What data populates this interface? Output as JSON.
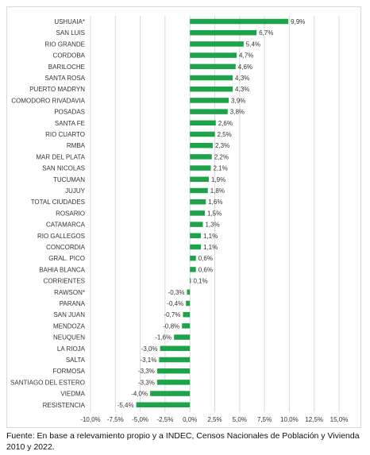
{
  "chart_data": {
    "type": "bar",
    "orientation": "horizontal",
    "bar_color": "#1fa34a",
    "grid_color": "#d9d9d9",
    "grid": true,
    "categories": [
      "USHUAIA*",
      "SAN LUIS",
      "RIO GRANDE",
      "CORDOBA",
      "BARILOCHE",
      "SANTA ROSA",
      "PUERTO MADRYN",
      "COMODORO RIVADAVIA",
      "POSADAS",
      "SANTA FE",
      "RIO CUARTO",
      "RMBA",
      "MAR DEL PLATA",
      "SAN NICOLAS",
      "TUCUMAN",
      "JUJUY",
      "TOTAL CIUDADES",
      "ROSARIO",
      "CATAMARCA",
      "RIO GALLEGOS",
      "CONCORDIA",
      "GRAL. PICO",
      "BAHIA BLANCA",
      "CORRIENTES",
      "RAWSON*",
      "PARANA",
      "SAN JUAN",
      "MENDOZA",
      "NEUQUEN",
      "LA RIOJA",
      "SALTA",
      "FORMOSA",
      "SANTIAGO DEL ESTERO",
      "VIEDMA",
      "RESISTENCIA"
    ],
    "values": [
      9.9,
      6.7,
      5.4,
      4.7,
      4.6,
      4.3,
      4.3,
      3.9,
      3.8,
      2.6,
      2.5,
      2.3,
      2.2,
      2.1,
      1.9,
      1.8,
      1.6,
      1.5,
      1.3,
      1.1,
      1.1,
      0.6,
      0.6,
      0.1,
      -0.3,
      -0.4,
      -0.7,
      -0.8,
      -1.6,
      -3.0,
      -3.1,
      -3.3,
      -3.3,
      -4.0,
      -5.4
    ],
    "value_labels": [
      "9,9%",
      "6,7%",
      "5,4%",
      "4,7%",
      "4,6%",
      "4,3%",
      "4,3%",
      "3,9%",
      "3,8%",
      "2,6%",
      "2,5%",
      "2,3%",
      "2,2%",
      "2,1%",
      "1,9%",
      "1,8%",
      "1,6%",
      "1,5%",
      "1,3%",
      "1,1%",
      "1,1%",
      "0,6%",
      "0,6%",
      "0,1%",
      "-0,3%",
      "-0,4%",
      "-0,7%",
      "-0,8%",
      "-1,6%",
      "-3,0%",
      "-3,1%",
      "-3,3%",
      "-3,3%",
      "-4,0%",
      "-5,4%"
    ],
    "x_ticks": [
      -10,
      -7.5,
      -5,
      -2.5,
      0,
      2.5,
      5,
      7.5,
      10,
      12.5,
      15
    ],
    "x_tick_labels": [
      "-10,0%",
      "-7,5%",
      "-5,0%",
      "-2,5%",
      "0,0%",
      "2,5%",
      "5,0%",
      "7,5%",
      "10,0%",
      "12,5%",
      "15,0%"
    ],
    "xlim": [
      -10,
      15
    ]
  },
  "source_note": "Fuente: En base a relevamiento propio y a INDEC, Censos Nacionales de Población y Vivienda 2010 y 2022."
}
